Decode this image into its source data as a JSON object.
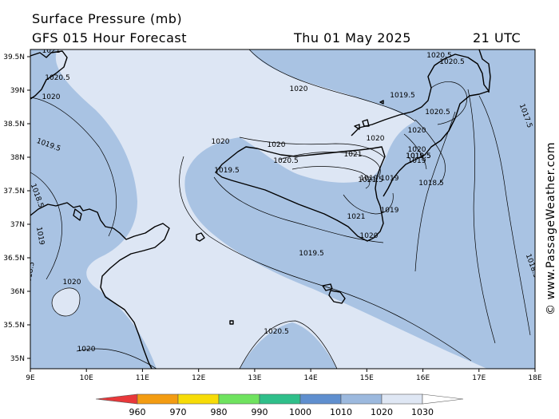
{
  "header": {
    "title": "Surface Pressure (mb)",
    "subtitle": "GFS 015 Hour Forecast",
    "date": "Thu 01 May 2025",
    "time": "21 UTC"
  },
  "credit": "© www.PassageWeather.com",
  "lat_labels": [
    "39.5N",
    "39N",
    "38.5N",
    "38N",
    "37.5N",
    "37N",
    "36.5N",
    "36N",
    "35.5N",
    "35N"
  ],
  "lon_labels": [
    "9E",
    "10E",
    "11E",
    "12E",
    "13E",
    "14E",
    "15E",
    "16E",
    "17E",
    "18E"
  ],
  "isobar_labels": [
    "1021",
    "1020.5",
    "1020",
    "1020",
    "1019.5",
    "1018.5",
    "1019",
    "1019.5",
    "1020",
    "1020",
    "1020.5",
    "1021",
    "1021.5",
    "1021",
    "1020",
    "1019.5",
    "1019.5",
    "1020",
    "1019.5",
    "1020.5",
    "1020.5",
    "1020.5",
    "1020",
    "1020",
    "1019.5",
    "1019",
    "1019",
    "1018.5",
    "1019",
    "1017.5",
    "1018.5",
    "1020.5",
    "1020",
    "1018.5",
    "1020",
    "1019"
  ],
  "colorbar": {
    "labels": [
      "960",
      "970",
      "980",
      "990",
      "1000",
      "1010",
      "1020",
      "1030"
    ],
    "colors": {
      "min": "#e8383a",
      "c960": "#f39c12",
      "c970": "#f7dc07",
      "c980": "#6fe35f",
      "c990": "#2fbf8a",
      "c1000": "#5f8fcf",
      "c1010": "#9cb9de",
      "c1020": "#dfe7f4",
      "max": "#ffffff"
    }
  },
  "map_colors": {
    "band_1010_1020": "#a9c3e3",
    "band_1020_1030": "#dde6f4",
    "coast": "#000000"
  }
}
